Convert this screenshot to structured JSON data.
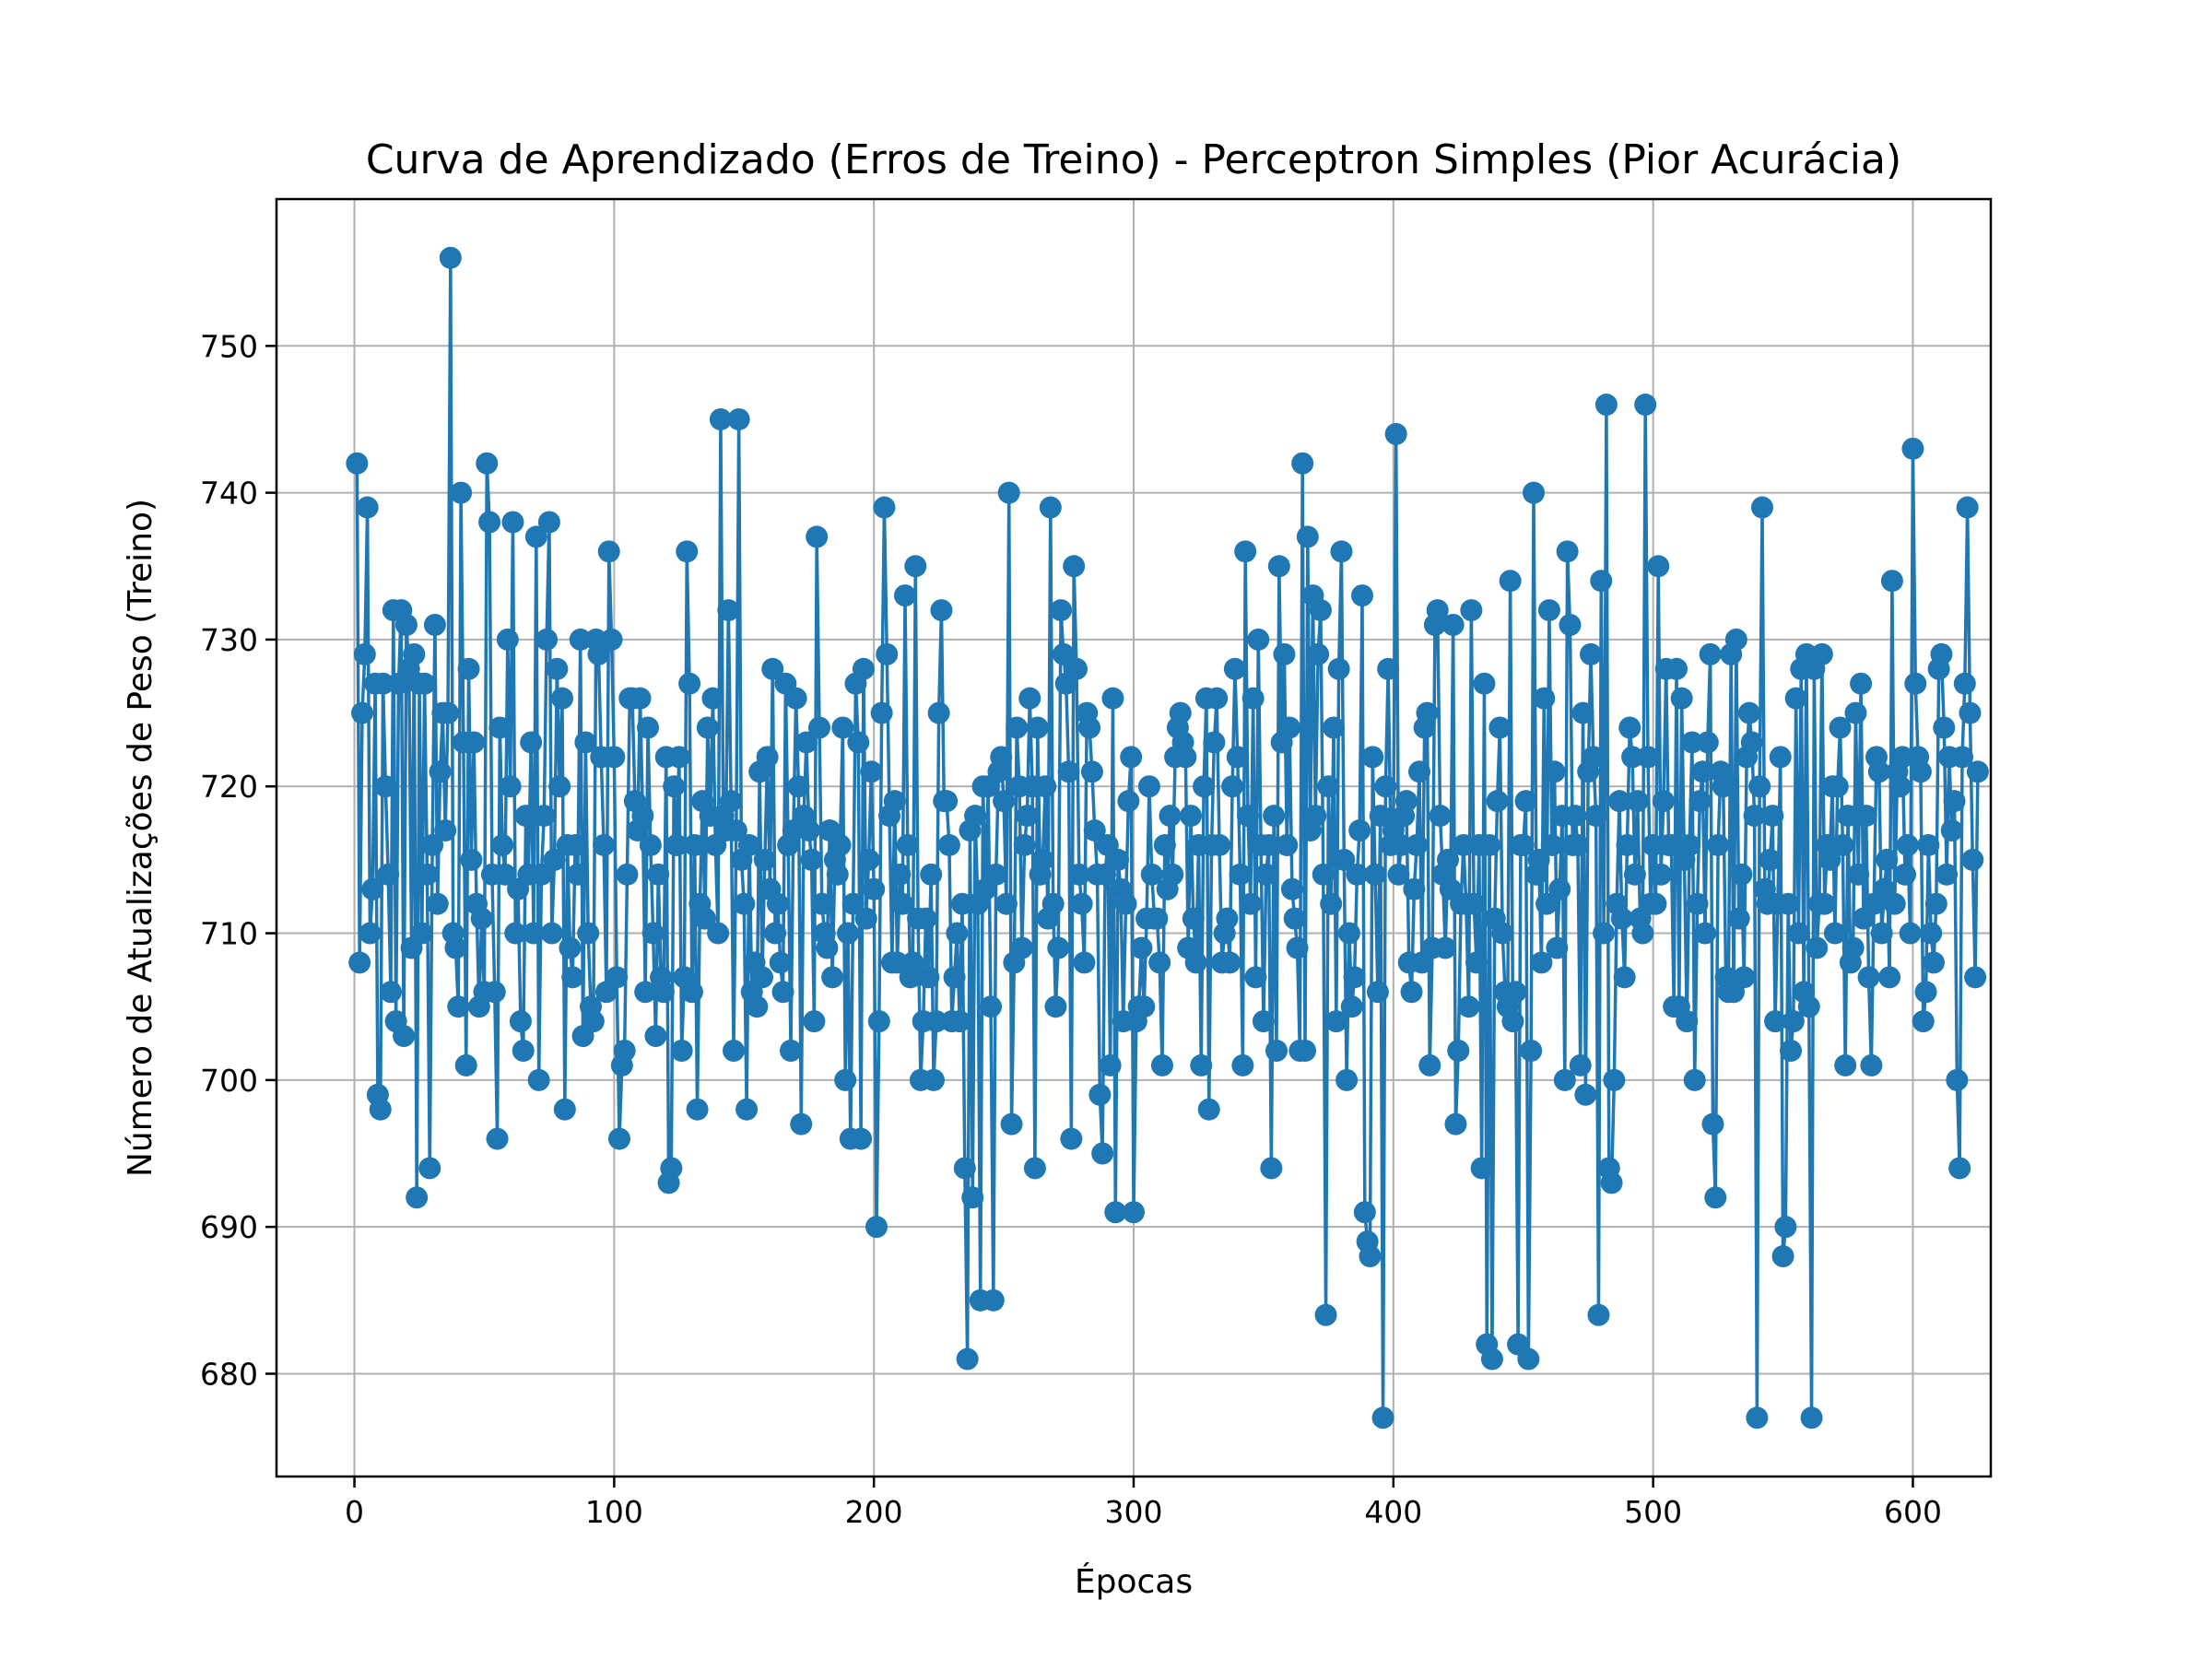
{
  "colors": {
    "series": "#1f77b4",
    "grid": "#b0b0b0",
    "axis": "#000000",
    "background": "#ffffff"
  },
  "chart_data": {
    "type": "line",
    "title": "Curva de Aprendizado (Erros de Treino) - Perceptron Simples (Pior Acurácia)",
    "xlabel": "Épocas",
    "ylabel": "Número de Atualizações de Peso (Treino)",
    "xlim": [
      -30,
      630
    ],
    "ylim": [
      673,
      760
    ],
    "xticks": [
      0,
      100,
      200,
      300,
      400,
      500,
      600
    ],
    "yticks": [
      680,
      690,
      700,
      710,
      720,
      730,
      740,
      750
    ],
    "xtick_labels": [
      "0",
      "100",
      "200",
      "300",
      "400",
      "500",
      "600"
    ],
    "ytick_labels": [
      "680",
      "690",
      "700",
      "710",
      "720",
      "730",
      "740",
      "750"
    ],
    "grid": true,
    "legend": "none",
    "marker": "circle",
    "series": [
      {
        "x_start": 1,
        "x_step": 1,
        "values": [
          742,
          708,
          725,
          729,
          739,
          710,
          713,
          727,
          699,
          698,
          727,
          720,
          714,
          706,
          732,
          704,
          727,
          732,
          703,
          731,
          728,
          709,
          729,
          692,
          727,
          710,
          727,
          714,
          694,
          716,
          731,
          712,
          721,
          725,
          717,
          725,
          756,
          710,
          709,
          705,
          740,
          723,
          701,
          728,
          715,
          723,
          712,
          705,
          711,
          706,
          742,
          738,
          714,
          706,
          696,
          724,
          716,
          714,
          730,
          720,
          738,
          710,
          713,
          704,
          702,
          718,
          714,
          723,
          710,
          737,
          700,
          714,
          718,
          730,
          738,
          710,
          715,
          728,
          720,
          726,
          698,
          716,
          709,
          707,
          716,
          714,
          730,
          703,
          723,
          710,
          705,
          704,
          730,
          729,
          722,
          716,
          706,
          736,
          730,
          722,
          707,
          696,
          701,
          702,
          714,
          726,
          726,
          719,
          717,
          726,
          718,
          706,
          724,
          716,
          710,
          703,
          714,
          707,
          706,
          722,
          693,
          694,
          720,
          716,
          722,
          702,
          707,
          736,
          727,
          706,
          716,
          698,
          712,
          719,
          711,
          724,
          718,
          726,
          716,
          710,
          745,
          718,
          717,
          732,
          719,
          702,
          717,
          745,
          715,
          712,
          698,
          716,
          706,
          708,
          705,
          721,
          707,
          715,
          722,
          713,
          728,
          710,
          712,
          708,
          706,
          727,
          716,
          702,
          717,
          726,
          720,
          697,
          718,
          723,
          717,
          715,
          704,
          737,
          724,
          712,
          710,
          709,
          717,
          707,
          715,
          714,
          716,
          724,
          700,
          710,
          696,
          712,
          727,
          723,
          696,
          728,
          711,
          715,
          721,
          713,
          690,
          704,
          725,
          739,
          729,
          718,
          708,
          719,
          708,
          714,
          712,
          733,
          716,
          707,
          708,
          735,
          711,
          700,
          704,
          711,
          707,
          714,
          700,
          704,
          725,
          732,
          719,
          719,
          716,
          704,
          707,
          710,
          704,
          712,
          694,
          716,
          717,
          692,
          718,
          712,
          681,
          720,
          713,
          720,
          705,
          685,
          714,
          721,
          722,
          719,
          712,
          740,
          697,
          708,
          724,
          720,
          709,
          716,
          718,
          726,
          720,
          694,
          724,
          714,
          715,
          720,
          711,
          739,
          712,
          705,
          709,
          732,
          729,
          727,
          721,
          696,
          735,
          728,
          714,
          712,
          708,
          725,
          724,
          721,
          717,
          714,
          699,
          695,
          714,
          716,
          701,
          726,
          691,
          715,
          713,
          704,
          712,
          719,
          722,
          691,
          704,
          705,
          709,
          705,
          711,
          720,
          714,
          711,
          711,
          708,
          701,
          716,
          713,
          718,
          714,
          722,
          724,
          725,
          723,
          722,
          709,
          718,
          711,
          708,
          716,
          701,
          720,
          726,
          698,
          716,
          723,
          726,
          716,
          708,
          710,
          711,
          708,
          720,
          728,
          722,
          714,
          701,
          736,
          718,
          712,
          726,
          707,
          730,
          716,
          704,
          714,
          716,
          694,
          718,
          702,
          735,
          723,
          729,
          716,
          724,
          713,
          711,
          709,
          702,
          742,
          702,
          737,
          717,
          733,
          718,
          729,
          732,
          714,
          684,
          720,
          712,
          724,
          704,
          728,
          736,
          715,
          700,
          710,
          705,
          707,
          714,
          717,
          733,
          691,
          689,
          688,
          722,
          714,
          706,
          718,
          715,
          720,
          728,
          716,
          717,
          744,
          714,
          716,
          718,
          719,
          708,
          706,
          713,
          716,
          721,
          708,
          724,
          725,
          701,
          709,
          731,
          732,
          718,
          714,
          709,
          715,
          713,
          731,
          697,
          702,
          712,
          716,
          712,
          705,
          732,
          712,
          708,
          716,
          694,
          727,
          725,
          716,
          722,
          711,
          719,
          724,
          710,
          706,
          705,
          734,
          704,
          706,
          682,
          716,
          716,
          719,
          681,
          702,
          740,
          714,
          715,
          708,
          726,
          712,
          732,
          716,
          721,
          709,
          713,
          718,
          700,
          736,
          731,
          716,
          718,
          716,
          701,
          725,
          699,
          721,
          729,
          722,
          718,
          684,
          734,
          710,
          722,
          694,
          693,
          700,
          712,
          719,
          711,
          707,
          716,
          724,
          722,
          714,
          719,
          711,
          710,
          746,
          722,
          712,
          716,
          712,
          735,
          714,
          719,
          728,
          716,
          716,
          705,
          728,
          705,
          726,
          715,
          704,
          716,
          723,
          700,
          712,
          719,
          721,
          710,
          723,
          729,
          697,
          692,
          716,
          721,
          720,
          707,
          706,
          729,
          706,
          730,
          711,
          714,
          707,
          722,
          725,
          723,
          718,
          708,
          720,
          739,
          713,
          712,
          715,
          718,
          704,
          712,
          722,
          688,
          690,
          712,
          702,
          704,
          726,
          710,
          728,
          706,
          729,
          705,
          677,
          728,
          709,
          712,
          729,
          712,
          716,
          715,
          720,
          710,
          720,
          724,
          716,
          701,
          718,
          708,
          709,
          725,
          714,
          727,
          711,
          718,
          707,
          701,
          712,
          722,
          721,
          710,
          713,
          715,
          707,
          734,
          712,
          721,
          720,
          722,
          714,
          716,
          710,
          743,
          727,
          722,
          721,
          704,
          706,
          716,
          710,
          708,
          712,
          728,
          729,
          724,
          714,
          722,
          717,
          719,
          700,
          694,
          722,
          727,
          739,
          725,
          715,
          707,
          721
        ],
        "value_overrides": {
          "30": 716,
          "31": 731,
          "236": 681,
          "241": 685,
          "396": 677,
          "436": 682,
          "438": 681,
          "482": 746,
          "540": 677
        }
      }
    ]
  }
}
